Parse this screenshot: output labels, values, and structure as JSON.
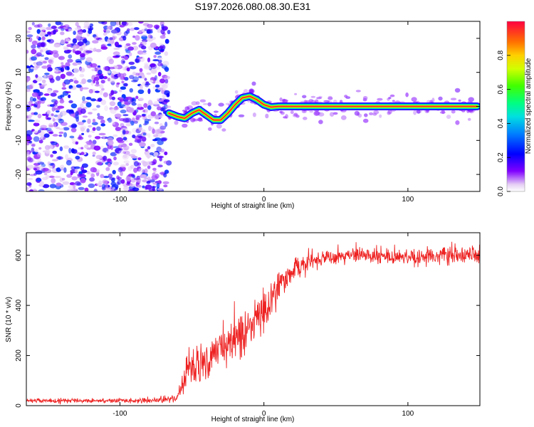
{
  "title": "S197.2026.080.08.30.E31",
  "chart_data": [
    {
      "type": "heatmap",
      "panel": "spectrogram",
      "title": "S197.2026.080.08.30.E31",
      "xlabel": "Height of straight line (km)",
      "ylabel": "Frequency (Hz)",
      "xlim": [
        -165,
        150
      ],
      "ylim": [
        -25,
        25
      ],
      "xticks": [
        -100,
        0,
        100
      ],
      "yticks": [
        -20,
        -10,
        0,
        10,
        20
      ],
      "xtick_labels": [
        "-100",
        "0",
        "100"
      ],
      "ytick_labels": [
        "-20",
        "-10",
        "0",
        "10",
        "20"
      ],
      "noise_region": {
        "x_from": -165,
        "x_to": -66,
        "freq_from": -25,
        "freq_to": 25,
        "amplitude_range": [
          0.0,
          0.25
        ]
      },
      "ridge": {
        "description": "dominant spectral peak frequency vs height",
        "x": [
          -66,
          -60,
          -55,
          -50,
          -45,
          -40,
          -35,
          -30,
          -25,
          -20,
          -15,
          -10,
          -5,
          0,
          5,
          10,
          15,
          20,
          25,
          30,
          40,
          60,
          80,
          100,
          120,
          140,
          148
        ],
        "freq": [
          -2,
          -3,
          -3.5,
          -2,
          -1,
          -2.5,
          -4,
          -4,
          -2,
          0.5,
          2.5,
          3,
          2,
          0.5,
          -0.2,
          0,
          0,
          0,
          0,
          0,
          0,
          0,
          0,
          0,
          0,
          0,
          0
        ],
        "amplitude": [
          0.35,
          0.45,
          0.55,
          0.7,
          0.8,
          0.75,
          0.8,
          0.85,
          0.8,
          0.85,
          0.9,
          0.92,
          0.9,
          0.95,
          0.95,
          1.0,
          1.0,
          1.0,
          1.0,
          1.0,
          1.0,
          1.0,
          1.0,
          1.0,
          1.0,
          1.0,
          1.0
        ]
      },
      "colorbar": {
        "label": "Normalized spectral amplitude",
        "range": [
          0.0,
          1.0
        ],
        "ticks": [
          0.0,
          0.2,
          0.4,
          0.6,
          0.8
        ],
        "tick_labels": [
          "0.0",
          "0.2",
          "0.4",
          "0.6",
          "0.8"
        ]
      }
    },
    {
      "type": "line",
      "panel": "snr",
      "xlabel": "Height of straight line (km)",
      "ylabel": "SNR (10 * v/v)",
      "xlim": [
        -165,
        150
      ],
      "ylim": [
        0,
        690
      ],
      "xticks": [
        -100,
        0,
        100
      ],
      "yticks": [
        0,
        200,
        400,
        600
      ],
      "xtick_labels": [
        "-100",
        "0",
        "100"
      ],
      "ytick_labels": [
        "0",
        "200",
        "400",
        "600"
      ],
      "color": "#ee2222",
      "series": [
        {
          "name": "SNR",
          "x": [
            -165,
            -120,
            -80,
            -60,
            -55,
            -52,
            -50,
            -45,
            -40,
            -30,
            -20,
            -10,
            -5,
            0,
            5,
            10,
            15,
            20,
            30,
            40,
            50,
            60,
            80,
            100,
            120,
            150
          ],
          "mean": [
            20,
            20,
            20,
            30,
            120,
            170,
            150,
            180,
            200,
            240,
            270,
            300,
            350,
            380,
            430,
            470,
            510,
            540,
            570,
            590,
            600,
            600,
            600,
            595,
            600,
            600
          ],
          "noise": [
            8,
            8,
            8,
            15,
            60,
            70,
            70,
            70,
            75,
            70,
            70,
            75,
            80,
            80,
            70,
            55,
            45,
            40,
            35,
            30,
            30,
            30,
            30,
            30,
            30,
            30
          ]
        }
      ]
    }
  ]
}
